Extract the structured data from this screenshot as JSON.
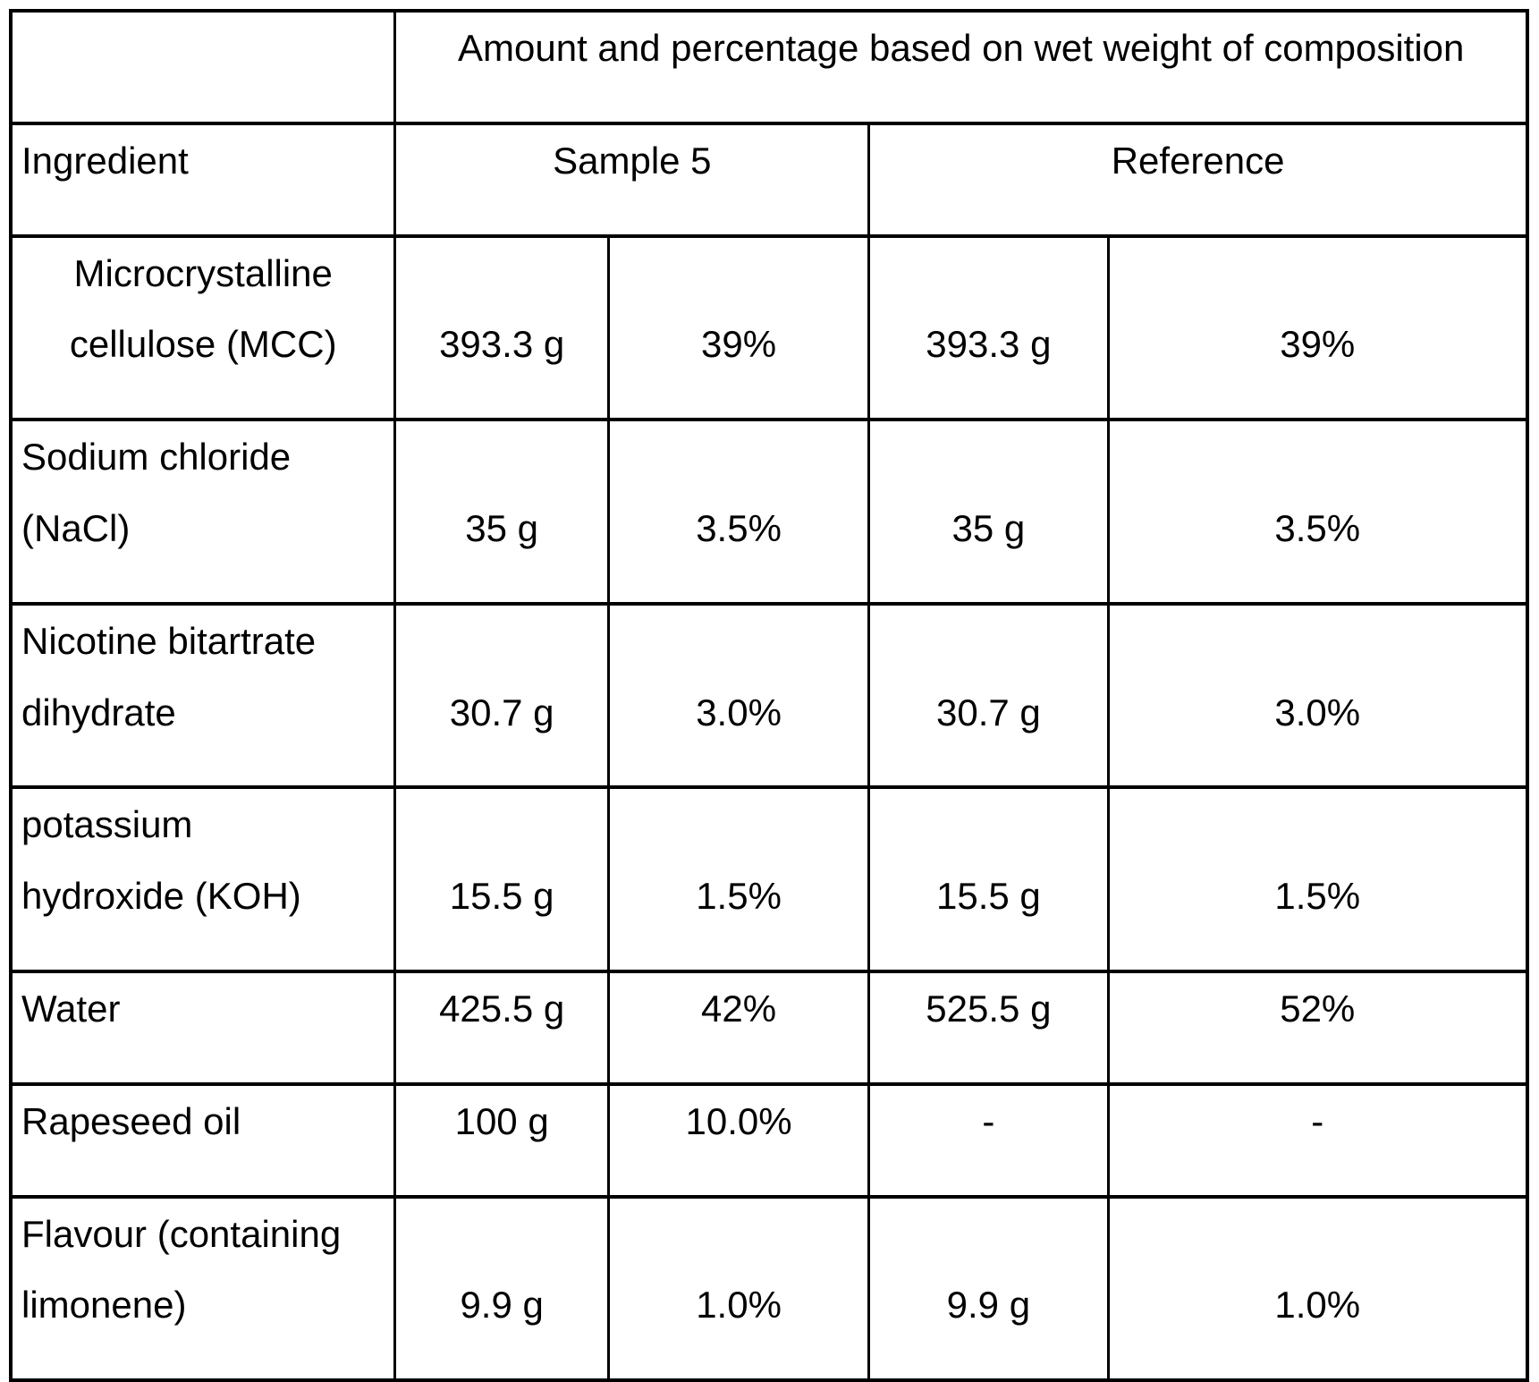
{
  "colors": {
    "background": "#ffffff",
    "text": "#000000",
    "border": "#000000"
  },
  "table": {
    "span_header": "Amount and percentage based on wet weight of composition",
    "ingredient_header": "Ingredient",
    "sample_header": "Sample 5",
    "reference_header": "Reference",
    "rows": [
      {
        "name": "Microcrystalline\ncellulose (MCC)",
        "sample_amount": "393.3 g",
        "sample_percent": "39%",
        "reference_amount": "393.3 g",
        "reference_percent": "39%"
      },
      {
        "name": "Sodium chloride\n(NaCl)",
        "sample_amount": "35 g",
        "sample_percent": "3.5%",
        "reference_amount": "35 g",
        "reference_percent": "3.5%"
      },
      {
        "name": "Nicotine bitartrate\ndihydrate",
        "sample_amount": "30.7 g",
        "sample_percent": "3.0%",
        "reference_amount": "30.7 g",
        "reference_percent": "3.0%"
      },
      {
        "name": "potassium\nhydroxide (KOH)",
        "sample_amount": "15.5 g",
        "sample_percent": "1.5%",
        "reference_amount": "15.5 g",
        "reference_percent": "1.5%"
      },
      {
        "name": "Water",
        "sample_amount": "425.5 g",
        "sample_percent": "42%",
        "reference_amount": "525.5 g",
        "reference_percent": "52%"
      },
      {
        "name": "Rapeseed oil",
        "sample_amount": "100 g",
        "sample_percent": "10.0%",
        "reference_amount": "-",
        "reference_percent": "-"
      },
      {
        "name": "Flavour (containing\nlimonene)",
        "sample_amount": "9.9 g",
        "sample_percent": "1.0%",
        "reference_amount": "9.9 g",
        "reference_percent": "1.0%"
      }
    ]
  }
}
